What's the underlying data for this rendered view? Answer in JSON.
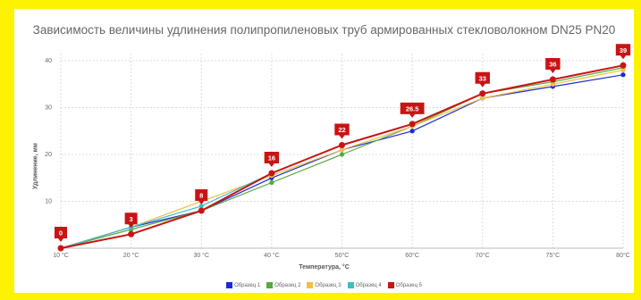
{
  "chart_data": {
    "type": "line",
    "title": "Зависимость величины удлинения полипропиленовых труб  армированных стекловолокном DN25 PN20",
    "xlabel": "Температура, °С",
    "ylabel": "Удлинение, мм",
    "categories": [
      "10 °С",
      "20 °С",
      "30 °С",
      "40 °С",
      "50°С",
      "60°С",
      "70°С",
      "75°С",
      "80°С"
    ],
    "ylim": [
      0,
      40
    ],
    "yticks": [
      10,
      20,
      30,
      40
    ],
    "grid": true,
    "legend_position": "bottom",
    "series": [
      {
        "name": "Образец 1",
        "color": "#1c2ad6",
        "values": [
          0,
          4.5,
          8,
          15,
          21,
          25,
          32,
          34.5,
          37
        ]
      },
      {
        "name": "Образец 2",
        "color": "#58a83e",
        "values": [
          0,
          4,
          8,
          14,
          20,
          26,
          33,
          35.5,
          38.5
        ]
      },
      {
        "name": "Образец 3",
        "color": "#f0c044",
        "values": [
          0,
          4.5,
          10,
          15.5,
          21,
          26,
          32,
          35,
          38
        ]
      },
      {
        "name": "Образец 4",
        "color": "#3dbdc4",
        "values": [
          0,
          4.5,
          9,
          16,
          22,
          26.5,
          33,
          36,
          39
        ]
      },
      {
        "name": "Образец 5",
        "color": "#c81414",
        "values": [
          0,
          3,
          8,
          16,
          22,
          26.5,
          33,
          36,
          39
        ]
      }
    ],
    "data_labels": {
      "series": "Образец 5",
      "texts": [
        "0",
        "3",
        "8",
        "16",
        "22",
        "26.5",
        "33",
        "36",
        "39"
      ]
    }
  }
}
